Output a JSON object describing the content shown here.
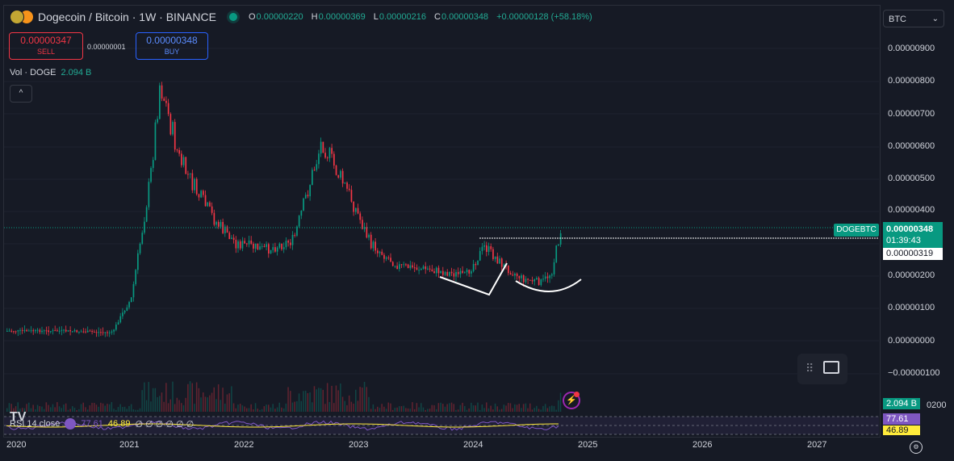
{
  "header": {
    "title": "Dogecoin / Bitcoin · 1W · BINANCE",
    "ohlc": {
      "o_key": "O",
      "o": "0.00000220",
      "h_key": "H",
      "h": "0.00000369",
      "l_key": "L",
      "l": "0.00000216",
      "c_key": "C",
      "c": "0.00000348",
      "change": "+0.00000128 (+58.18%)"
    }
  },
  "trade": {
    "sell_price": "0.00000347",
    "sell_label": "SELL",
    "spread": "0.00000001",
    "buy_price": "0.00000348",
    "buy_label": "BUY"
  },
  "volume": {
    "label": "Vol · DOGE",
    "value": "2.094 B"
  },
  "collapse_icon": "^",
  "currency": {
    "selected": "BTC",
    "chevron": "⌄"
  },
  "price_axis": {
    "ticks": [
      "0.00000900",
      "0.00000800",
      "0.00000700",
      "0.00000600",
      "0.00000500",
      "0.00000400",
      "0.00000200",
      "0.00000100",
      "0.00000000",
      "−0.00000100",
      "0200"
    ],
    "symbol_badge": "DOGEBTC",
    "last_price": "0.00000348",
    "countdown": "01:39:43",
    "line_price": "0.00000319",
    "vol_badge": "2.094 B",
    "rsi_badge": "77.61",
    "rsi_ma_badge": "46.89"
  },
  "rsi": {
    "label": "RSI 14 close",
    "value": "77.61",
    "ma": "46.89",
    "rest": "∅ ∅ ∅ ∅ ∅ ∅"
  },
  "logo": "TV",
  "time_axis": [
    "2020",
    "2021",
    "2022",
    "2023",
    "2024",
    "2025",
    "2026",
    "2027"
  ],
  "icons": {
    "drag": "drag-handle-icon",
    "image": "image-icon",
    "alert": "lightning-alert-icon",
    "settings": "gear-icon"
  },
  "colors": {
    "up": "#089981",
    "down": "#f23645",
    "rsi": "#7e57c2",
    "rsi_ma": "#ffeb3b",
    "buy": "#2962ff"
  },
  "chart_data": {
    "type": "line",
    "series": [
      {
        "name": "DOGEBTC",
        "x": [
          "2020-01",
          "2020-07",
          "2020-12",
          "2021-01",
          "2021-02",
          "2021-04",
          "2021-05",
          "2021-07",
          "2021-09",
          "2021-11",
          "2022-01",
          "2022-04",
          "2022-07",
          "2022-10",
          "2022-11",
          "2023-01",
          "2023-03",
          "2023-06",
          "2023-09",
          "2023-11",
          "2024-01",
          "2024-03",
          "2024-05",
          "2024-07",
          "2024-09",
          "2024-10",
          "2024-11"
        ],
        "values": [
          3e-07,
          3e-07,
          2.5e-07,
          8e-07,
          1.3e-06,
          5e-06,
          8e-06,
          5.6e-06,
          4.5e-06,
          3.6e-06,
          3e-06,
          2.8e-06,
          3.1e-06,
          6.2e-06,
          5.5e-06,
          4.4e-06,
          3e-06,
          2.3e-06,
          2.2e-06,
          2.1e-06,
          2e-06,
          2.9e-06,
          2.3e-06,
          1.9e-06,
          1.8e-06,
          2.1e-06,
          3.48e-06
        ]
      }
    ],
    "ylim": [
      -2e-06,
      1e-05
    ]
  }
}
